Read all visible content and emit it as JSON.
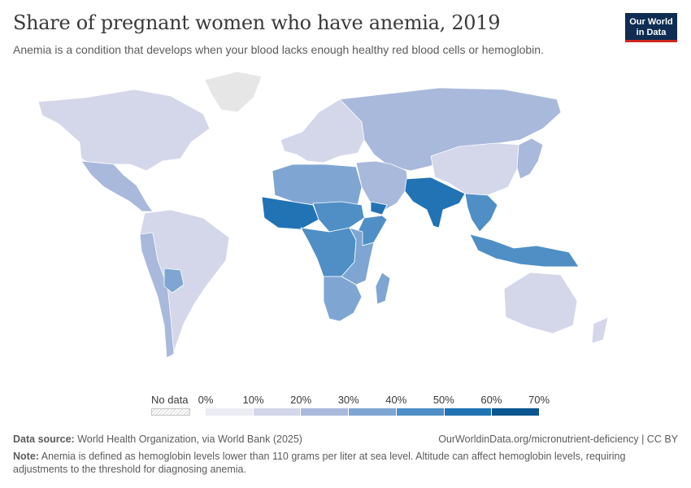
{
  "header": {
    "title": "Share of pregnant women who have anemia, 2019",
    "subtitle": "Anemia is a condition that develops when your blood lacks enough healthy red blood cells or hemoglobin."
  },
  "logo": {
    "line1": "Our World",
    "line2": "in Data"
  },
  "legend": {
    "no_data_label": "No data",
    "ticks": [
      "0%",
      "10%",
      "20%",
      "30%",
      "40%",
      "50%",
      "60%",
      "70%"
    ],
    "colors": [
      "#ececf4",
      "#d4d6ea",
      "#a9b9db",
      "#7fa6d2",
      "#4f8fc6",
      "#2273b4",
      "#0c5690"
    ],
    "no_data_color": "#e6e6e6"
  },
  "footer": {
    "source_label": "Data source:",
    "source_text": "World Health Organization, via World Bank (2025)",
    "url": "OurWorldinData.org/micronutrient-deficiency | CC BY",
    "note_label": "Note:",
    "note_text": "Anemia is defined as hemoglobin levels lower than 110 grams per liter at sea level. Altitude can affect hemoglobin levels, requiring adjustments to the threshold for diagnosing anemia."
  },
  "map_data": {
    "metric": "Share of pregnant women who have anemia",
    "year": 2019,
    "unit": "%",
    "regions": [
      {
        "name": "North America",
        "level": 1
      },
      {
        "name": "Greenland",
        "level": -1
      },
      {
        "name": "Mexico & Central America",
        "level": 2
      },
      {
        "name": "South America",
        "level": 1
      },
      {
        "name": "Andes",
        "level": 2
      },
      {
        "name": "Bolivia",
        "level": 3
      },
      {
        "name": "Europe",
        "level": 1
      },
      {
        "name": "Russia & Central Asia",
        "level": 2
      },
      {
        "name": "China",
        "level": 1
      },
      {
        "name": "Middle East",
        "level": 2
      },
      {
        "name": "Yemen",
        "level": 5
      },
      {
        "name": "North Africa",
        "level": 3
      },
      {
        "name": "West Africa",
        "level": 5
      },
      {
        "name": "Sahel",
        "level": 4
      },
      {
        "name": "Central Africa",
        "level": 4
      },
      {
        "name": "Somalia",
        "level": 4
      },
      {
        "name": "East Africa",
        "level": 3
      },
      {
        "name": "Southern Africa",
        "level": 3
      },
      {
        "name": "Madagascar",
        "level": 3
      },
      {
        "name": "South Asia",
        "level": 5
      },
      {
        "name": "Southeast Asia",
        "level": 4
      },
      {
        "name": "Indonesia & Papua",
        "level": 4
      },
      {
        "name": "Japan & Korea",
        "level": 2
      },
      {
        "name": "Australia & New Zealand",
        "level": 1
      }
    ]
  }
}
